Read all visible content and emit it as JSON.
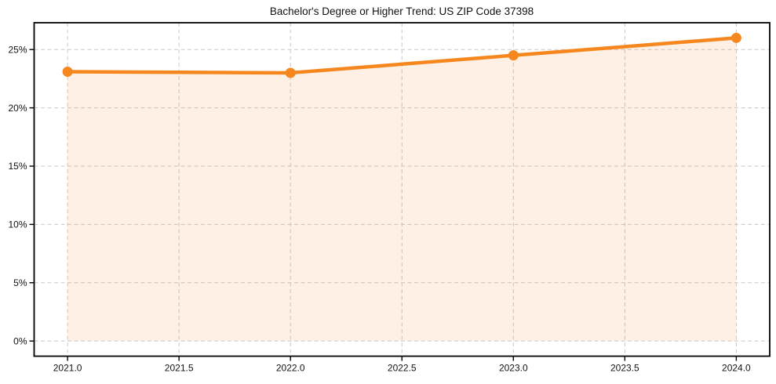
{
  "chart_data": {
    "type": "line",
    "title": "Bachelor's Degree or Higher Trend: US ZIP Code 37398",
    "x": [
      2021,
      2022,
      2023,
      2024
    ],
    "values": [
      23.1,
      23.0,
      24.5,
      26.0
    ],
    "area_fill": true,
    "markers": true,
    "grid": true,
    "legend": "none",
    "xlim": [
      2020.85,
      2024.15
    ],
    "ylim": [
      -1.3,
      27.3
    ],
    "x_ticks": [
      2021.0,
      2021.5,
      2022.0,
      2022.5,
      2023.0,
      2023.5,
      2024.0
    ],
    "x_tick_labels": [
      "2021.0",
      "2021.5",
      "2022.0",
      "2022.5",
      "2023.0",
      "2023.5",
      "2024.0"
    ],
    "y_ticks": [
      0,
      5,
      10,
      15,
      20,
      25
    ],
    "y_tick_labels": [
      "0%",
      "5%",
      "10%",
      "15%",
      "20%",
      "25%"
    ],
    "colors": {
      "line": "#F6871F",
      "marker": "#F6871F",
      "fill": "rgba(246,135,31,0.12)",
      "grid": "#c8c8c8",
      "spine": "#000000",
      "text": "#111111",
      "background": "#ffffff"
    }
  }
}
